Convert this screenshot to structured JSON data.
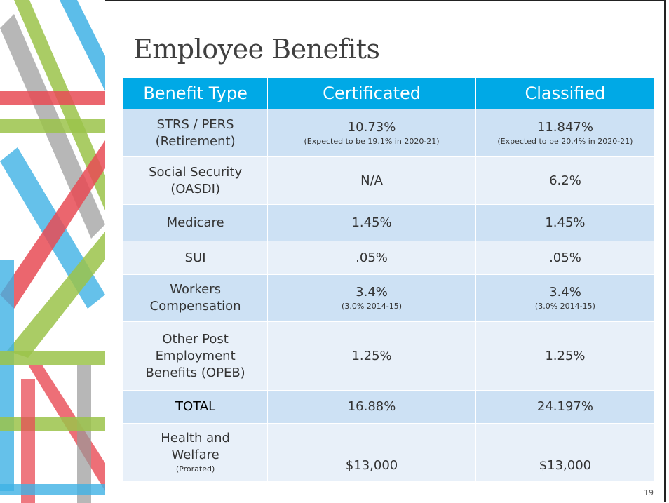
{
  "title": "Employee Benefits",
  "table": {
    "header": [
      "Benefit Type",
      "Certificated",
      "Classified"
    ],
    "rows": [
      {
        "label": [
          "STRS / PERS",
          "(Retirement)"
        ],
        "certificated": {
          "value": "10.73%",
          "note": "(Expected to be 19.1% in 2020-21)"
        },
        "classified": {
          "value": "11.847%",
          "note": "(Expected to be 20.4% in 2020-21)"
        }
      },
      {
        "label": [
          "Social Security",
          "(OASDI)"
        ],
        "certificated": {
          "value": "N/A"
        },
        "classified": {
          "value": "6.2%"
        }
      },
      {
        "label": [
          "Medicare"
        ],
        "certificated": {
          "value": "1.45%"
        },
        "classified": {
          "value": "1.45%"
        }
      },
      {
        "label": [
          "SUI"
        ],
        "certificated": {
          "value": ".05%"
        },
        "classified": {
          "value": ".05%"
        }
      },
      {
        "label": [
          "Workers",
          "Compensation"
        ],
        "certificated": {
          "value": "3.4%",
          "note": "(3.0% 2014-15)"
        },
        "classified": {
          "value": "3.4%",
          "note": "(3.0% 2014-15)"
        }
      },
      {
        "label": [
          "Other Post",
          "Employment",
          "Benefits (OPEB)"
        ],
        "certificated": {
          "value": "1.25%"
        },
        "classified": {
          "value": "1.25%"
        }
      },
      {
        "label": [
          "TOTAL"
        ],
        "certificated": {
          "value": "16.88%"
        },
        "classified": {
          "value": "24.197%"
        }
      },
      {
        "label": [
          "Health and",
          "Welfare"
        ],
        "label_note": "(Prorated)",
        "certificated": {
          "value": "$13,000"
        },
        "classified": {
          "value": "$13,000"
        }
      }
    ]
  },
  "page_number": "19"
}
